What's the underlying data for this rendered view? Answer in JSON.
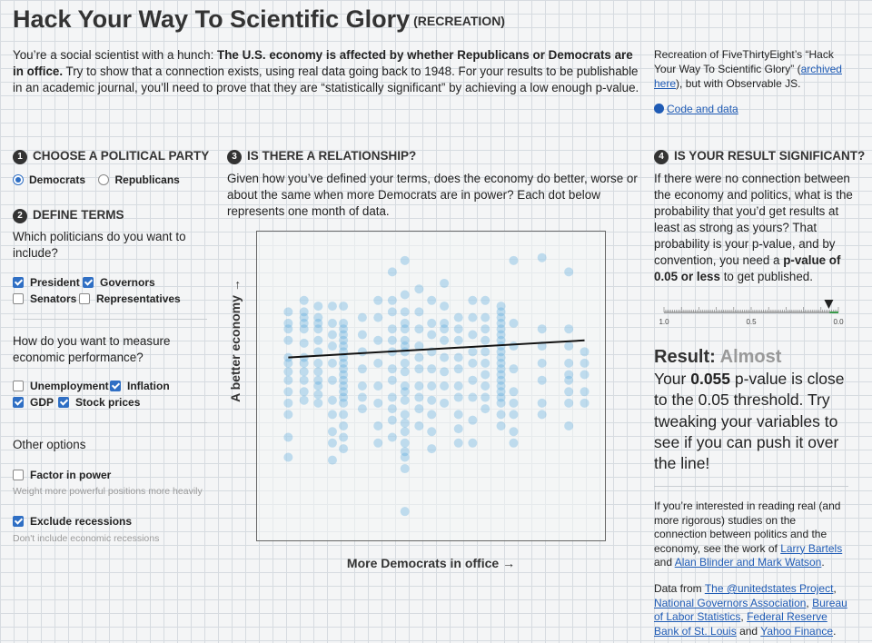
{
  "header": {
    "title": "Hack Your Way To Scientific Glory",
    "subtitle": "(RECREATION)"
  },
  "intro": {
    "pre": "You’re a social scientist with a hunch: ",
    "bold": "The U.S. economy is affected by whether Republicans or Democrats are in office.",
    "post": " Try to show that a connection exists, using real data going back to 1948. For your results to be publishable in an academic journal, you’ll need to prove that they are “statistically significant” by achieving a low enough p-value."
  },
  "credit": {
    "pre": "Recreation of FiveThirtyEight’s “Hack Your Way To Scientific Glory” (",
    "link": "archived here",
    "post": "), but with Observable JS.",
    "code_link": "Code and data"
  },
  "step1": {
    "num": "1",
    "title": "CHOOSE A POLITICAL PARTY",
    "options": [
      {
        "label": "Democrats",
        "selected": true
      },
      {
        "label": "Republicans",
        "selected": false
      }
    ]
  },
  "step2": {
    "num": "2",
    "title": "DEFINE TERMS",
    "q1": "Which politicians do you want to include?",
    "politicians": [
      {
        "label": "President",
        "checked": true
      },
      {
        "label": "Governors",
        "checked": true
      },
      {
        "label": "Senators",
        "checked": false
      },
      {
        "label": "Representatives",
        "checked": false
      }
    ],
    "q2": "How do you want to measure economic performance?",
    "measures": [
      {
        "label": "Unemployment",
        "checked": false
      },
      {
        "label": "Inflation",
        "checked": true
      },
      {
        "label": "GDP",
        "checked": true
      },
      {
        "label": "Stock prices",
        "checked": true
      }
    ],
    "other_title": "Other options",
    "factor": {
      "label": "Factor in power",
      "checked": false,
      "hint": "Weight more powerful positions more heavily"
    },
    "recess": {
      "label": "Exclude recessions",
      "checked": true,
      "hint": "Don't include economic recessions"
    }
  },
  "step3": {
    "num": "3",
    "title": "IS THERE A RELATIONSHIP?",
    "desc": "Given how you’ve defined your terms, does the economy do better, worse or about the same when more Democrats are in power? Each dot below represents one month of data.",
    "ylabel": "A better economy →",
    "xlabel": "More Democrats in office →"
  },
  "step4": {
    "num": "4",
    "title": "IS YOUR RESULT SIGNIFICANT?",
    "desc_pre": "If there were no connection between the economy and politics, what is the probability that you’d get results at least as strong as yours? That probability is your p-value, and by convention, you need a ",
    "desc_bold": "p-value of 0.05 or less",
    "desc_post": " to get published.",
    "scale": {
      "left": "1.0",
      "mid": "0.5",
      "right": "0.0",
      "value": 0.055
    },
    "result_label": "Result:",
    "result_value": "Almost",
    "body_pre": "Your ",
    "body_bold": "0.055",
    "body_post": " p-value is close to the 0.05 threshold. Try tweaking your variables to see if you can push it over the line!"
  },
  "further": {
    "pre": "If you’re interested in reading real (and more rigorous) studies on the connection between politics and the economy, see the work of ",
    "link1": "Larry Bartels",
    "mid": " and ",
    "link2": "Alan Blinder and Mark Watson",
    "post": "."
  },
  "sources": {
    "pre": "Data from ",
    "l1": "The @unitedstates Project",
    "l2": "National Governors Association",
    "l3": "Bureau of Labor Statistics",
    "l4": "Federal Reserve Bank of St. Louis",
    "and": " and ",
    "l5": "Yahoo Finance",
    "post": "."
  },
  "colors": {
    "dot": "#5aa9dc",
    "accent": "#2f6fc4",
    "link": "#1f5bb5",
    "threshold": "#3a9a4a"
  },
  "chart_data": {
    "type": "scatter",
    "xlabel": "More Democrats in office →",
    "ylabel": "A better economy →",
    "columns": [
      {
        "x": 0.05,
        "y": [
          0.76,
          0.72,
          0.7,
          0.66,
          0.6,
          0.58,
          0.55,
          0.52,
          0.48,
          0.44,
          0.4,
          0.32,
          0.25
        ]
      },
      {
        "x": 0.1,
        "y": [
          0.8,
          0.76,
          0.74,
          0.72,
          0.7,
          0.65,
          0.6,
          0.58,
          0.55,
          0.52,
          0.48,
          0.45
        ]
      },
      {
        "x": 0.145,
        "y": [
          0.78,
          0.74,
          0.72,
          0.7,
          0.66,
          0.62,
          0.58,
          0.55,
          0.52,
          0.5,
          0.47,
          0.44
        ]
      },
      {
        "x": 0.19,
        "y": [
          0.78,
          0.72,
          0.68,
          0.64,
          0.58,
          0.52,
          0.45,
          0.4,
          0.34,
          0.3,
          0.24
        ]
      },
      {
        "x": 0.225,
        "y": [
          0.78,
          0.72,
          0.7,
          0.68,
          0.66,
          0.64,
          0.62,
          0.6,
          0.58,
          0.56,
          0.54,
          0.52,
          0.5,
          0.48,
          0.46,
          0.44,
          0.4,
          0.36,
          0.32,
          0.28
        ]
      },
      {
        "x": 0.285,
        "y": [
          0.74,
          0.68,
          0.62,
          0.56,
          0.5,
          0.46,
          0.42
        ]
      },
      {
        "x": 0.335,
        "y": [
          0.8,
          0.74,
          0.66,
          0.58,
          0.5,
          0.44,
          0.36,
          0.3
        ]
      },
      {
        "x": 0.38,
        "y": [
          0.9,
          0.8,
          0.76,
          0.7,
          0.66,
          0.62,
          0.56,
          0.52,
          0.46,
          0.42,
          0.38,
          0.32
        ]
      },
      {
        "x": 0.42,
        "y": [
          0.94,
          0.82,
          0.76,
          0.72,
          0.7,
          0.66,
          0.64,
          0.62,
          0.58,
          0.55,
          0.5,
          0.48,
          0.45,
          0.4,
          0.37,
          0.34,
          0.3,
          0.27,
          0.25,
          0.21,
          0.06
        ]
      },
      {
        "x": 0.465,
        "y": [
          0.84,
          0.76,
          0.7,
          0.64,
          0.6,
          0.56,
          0.5,
          0.46,
          0.42,
          0.36
        ]
      },
      {
        "x": 0.505,
        "y": [
          0.8,
          0.72,
          0.68,
          0.62,
          0.56,
          0.5,
          0.45,
          0.4,
          0.34,
          0.28
        ]
      },
      {
        "x": 0.545,
        "y": [
          0.86,
          0.78,
          0.72,
          0.7,
          0.66,
          0.6,
          0.55,
          0.5,
          0.44
        ]
      },
      {
        "x": 0.59,
        "y": [
          0.74,
          0.7,
          0.66,
          0.6,
          0.56,
          0.5,
          0.46,
          0.4,
          0.35,
          0.3
        ]
      },
      {
        "x": 0.635,
        "y": [
          0.8,
          0.74,
          0.68,
          0.62,
          0.58,
          0.52,
          0.46,
          0.38,
          0.3
        ]
      },
      {
        "x": 0.675,
        "y": [
          0.8,
          0.74,
          0.7,
          0.66,
          0.62,
          0.58,
          0.54,
          0.5,
          0.46,
          0.42
        ]
      },
      {
        "x": 0.725,
        "y": [
          0.78,
          0.76,
          0.74,
          0.72,
          0.7,
          0.68,
          0.66,
          0.64,
          0.62,
          0.6,
          0.58,
          0.56,
          0.54,
          0.52,
          0.5,
          0.48,
          0.46,
          0.44,
          0.4,
          0.36
        ]
      },
      {
        "x": 0.765,
        "y": [
          0.94,
          0.72,
          0.64,
          0.56,
          0.48,
          0.44,
          0.4,
          0.34,
          0.3
        ]
      },
      {
        "x": 0.855,
        "y": [
          0.95,
          0.7,
          0.64,
          0.58,
          0.52,
          0.44,
          0.4
        ]
      },
      {
        "x": 0.94,
        "y": [
          0.9,
          0.7,
          0.64,
          0.58,
          0.54,
          0.52,
          0.48,
          0.44,
          0.36
        ]
      },
      {
        "x": 0.99,
        "y": [
          0.62,
          0.58,
          0.54,
          0.48,
          0.44
        ]
      }
    ],
    "trend": {
      "x": [
        0.05,
        0.99
      ],
      "y": [
        0.6,
        0.66
      ]
    }
  }
}
